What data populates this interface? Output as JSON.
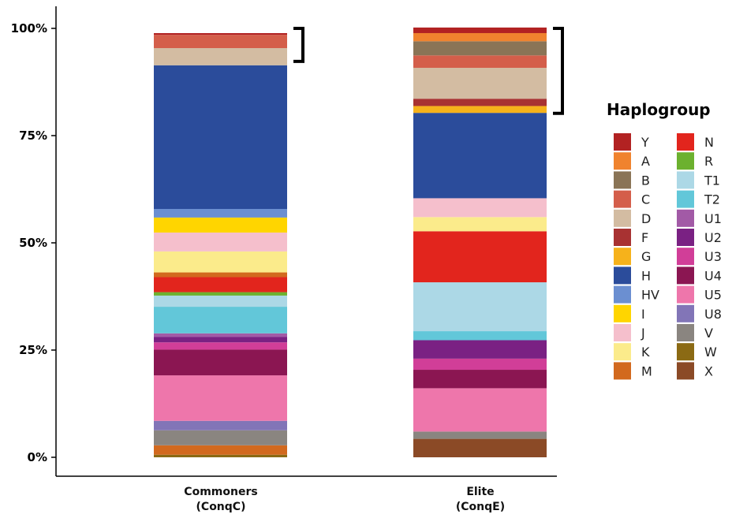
{
  "chart_data": {
    "type": "bar",
    "stacked": true,
    "orientation": "vertical",
    "ylim": [
      0,
      100
    ],
    "y_ticks": [
      "0%",
      "25%",
      "50%",
      "75%",
      "100%"
    ],
    "categories": [
      {
        "line1": "Commoners",
        "line2": "(ConqC)"
      },
      {
        "line1": "Elite",
        "line2": "(ConqE)"
      }
    ],
    "legend": {
      "title": "Haplogroup",
      "placement": "right",
      "columns": [
        [
          "Y",
          "A",
          "B",
          "C",
          "D",
          "F",
          "G",
          "H",
          "HV",
          "I",
          "J",
          "K",
          "M"
        ],
        [
          "N",
          "R",
          "T1",
          "T2",
          "U1",
          "U2",
          "U3",
          "U4",
          "U5",
          "U8",
          "V",
          "W",
          "X"
        ]
      ]
    },
    "colors": {
      "Y": "#b22222",
      "A": "#f0832e",
      "B": "#8a7456",
      "C": "#d45e4a",
      "D": "#d3bca2",
      "F": "#a83232",
      "G": "#f6b21b",
      "H": "#2b4c9b",
      "HV": "#6b8fd1",
      "I": "#ffd500",
      "J": "#f5bfcc",
      "K": "#fbeb8b",
      "M": "#d2691e",
      "N": "#e2251d",
      "R": "#6cb12f",
      "T1": "#acd8e6",
      "T2": "#62c7d9",
      "U1": "#a25aa6",
      "U2": "#7a2183",
      "U3": "#d13e98",
      "U4": "#8b1652",
      "U5": "#ee76ab",
      "U8": "#8275b7",
      "V": "#8a8580",
      "W": "#8b6a14",
      "X": "#8b4a26"
    },
    "series_values": [
      {
        "category": "Commoners (ConqC)",
        "segments": [
          {
            "name": "W",
            "value": 0.6
          },
          {
            "name": "M",
            "value": 2.2
          },
          {
            "name": "V",
            "value": 3.5
          },
          {
            "name": "U8",
            "value": 2.2
          },
          {
            "name": "U5",
            "value": 10.6
          },
          {
            "name": "U4",
            "value": 6.0
          },
          {
            "name": "U3",
            "value": 1.7
          },
          {
            "name": "U2",
            "value": 1.3
          },
          {
            "name": "U1",
            "value": 0.8
          },
          {
            "name": "T2",
            "value": 6.2
          },
          {
            "name": "T1",
            "value": 2.6
          },
          {
            "name": "R",
            "value": 0.8
          },
          {
            "name": "N",
            "value": 3.5
          },
          {
            "name": "M",
            "value": 1.1
          },
          {
            "name": "K",
            "value": 4.9
          },
          {
            "name": "J",
            "value": 4.4
          },
          {
            "name": "I",
            "value": 3.5
          },
          {
            "name": "HV",
            "value": 2.0
          },
          {
            "name": "H",
            "value": 33.5
          },
          {
            "name": "D",
            "value": 4.0
          },
          {
            "name": "C",
            "value": 3.1
          },
          {
            "name": "Y",
            "value": 0.4
          }
        ]
      },
      {
        "category": "Elite (ConqE)",
        "segments": [
          {
            "name": "X",
            "value": 4.3
          },
          {
            "name": "V",
            "value": 1.7
          },
          {
            "name": "U5",
            "value": 10.1
          },
          {
            "name": "U4",
            "value": 4.3
          },
          {
            "name": "U3",
            "value": 2.6
          },
          {
            "name": "U2",
            "value": 4.3
          },
          {
            "name": "T2",
            "value": 2.1
          },
          {
            "name": "T1",
            "value": 11.4
          },
          {
            "name": "N",
            "value": 11.9
          },
          {
            "name": "K",
            "value": 3.3
          },
          {
            "name": "J",
            "value": 4.4
          },
          {
            "name": "H",
            "value": 19.9
          },
          {
            "name": "G",
            "value": 1.6
          },
          {
            "name": "F",
            "value": 1.7
          },
          {
            "name": "D",
            "value": 7.2
          },
          {
            "name": "C",
            "value": 2.9
          },
          {
            "name": "B",
            "value": 3.3
          },
          {
            "name": "A",
            "value": 1.9
          },
          {
            "name": "Y",
            "value": 1.3
          }
        ]
      }
    ],
    "brackets": [
      {
        "category": "Commoners (ConqC)",
        "from": 92.3,
        "to": 100
      },
      {
        "category": "Elite (ConqE)",
        "from": 80.2,
        "to": 100
      }
    ],
    "grid": false
  }
}
